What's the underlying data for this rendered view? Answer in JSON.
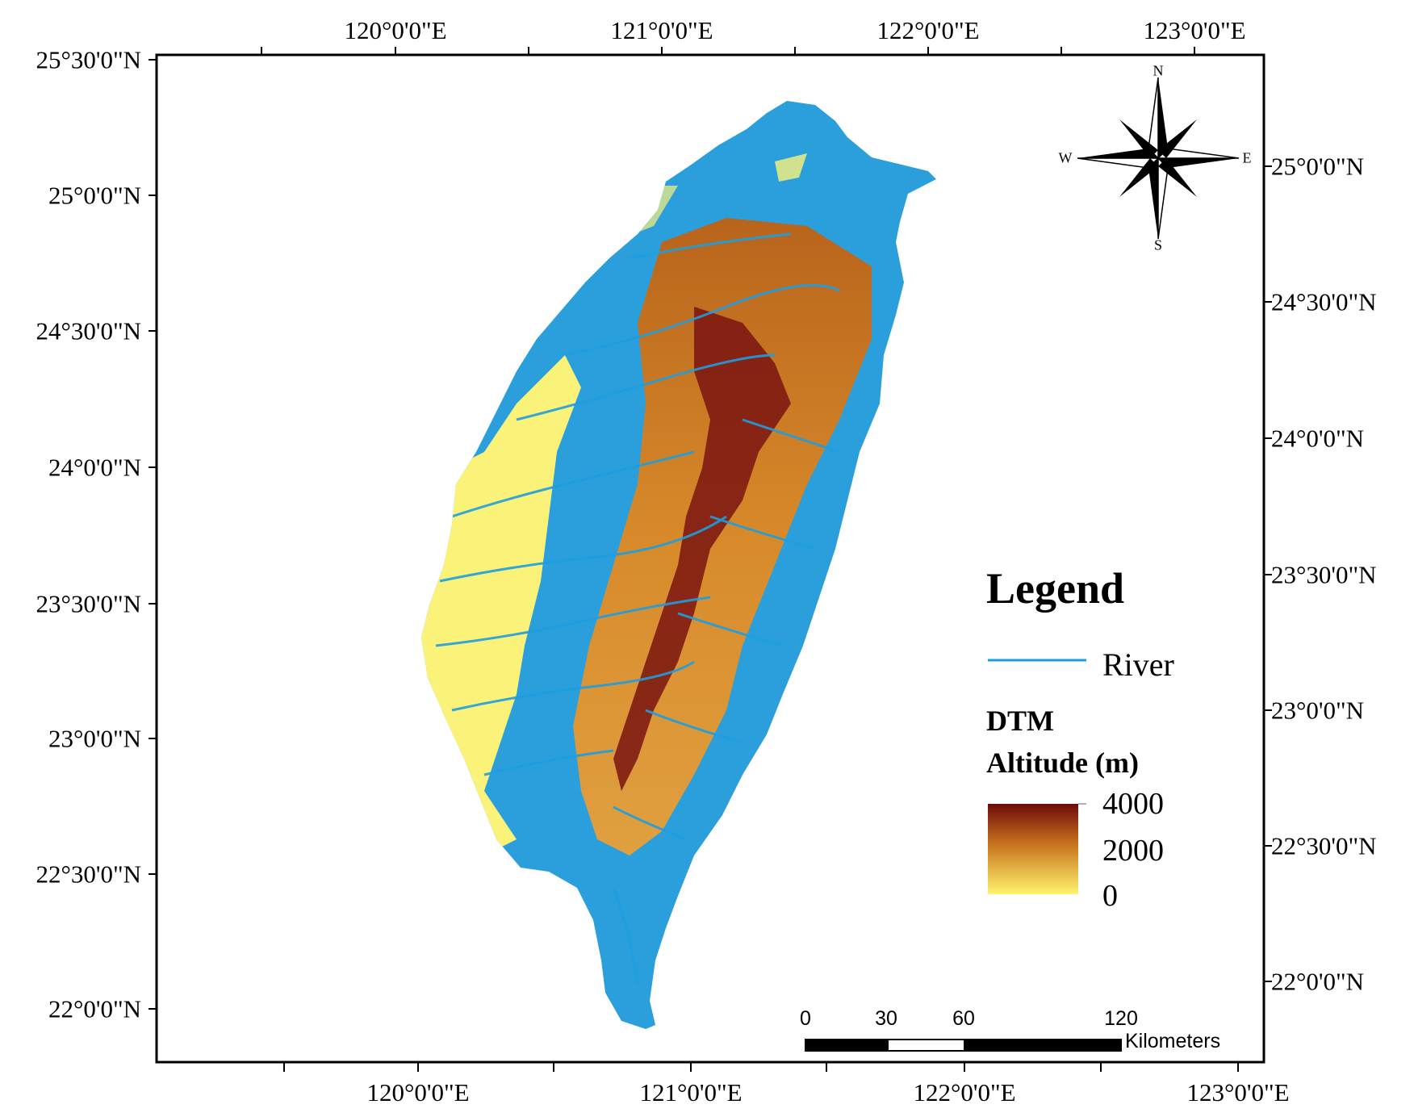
{
  "map": {
    "top_lon_labels": [
      "120°0'0\"E",
      "121°0'0\"E",
      "122°0'0\"E",
      "123°0'0\"E"
    ],
    "bottom_lon_labels": [
      "120°0'0\"E",
      "121°0'0\"E",
      "122°0'0\"E",
      "123°0'0\"E"
    ],
    "left_lat_labels": [
      "25°30'0\"N",
      "25°0'0\"N",
      "24°30'0\"N",
      "24°0'0\"N",
      "23°30'0\"N",
      "23°0'0\"N",
      "22°30'0\"N",
      "22°0'0\"N"
    ],
    "right_lat_labels": [
      "25°0'0\"N",
      "24°30'0\"N",
      "24°0'0\"N",
      "23°30'0\"N",
      "23°0'0\"N",
      "22°30'0\"N",
      "22°0'0\"N"
    ]
  },
  "compass": {
    "n": "N",
    "s": "S",
    "e": "E",
    "w": "W"
  },
  "legend": {
    "title": "Legend",
    "river_label": "River",
    "dtm_label": "DTM",
    "altitude_label": "Altitude (m)",
    "ramp_labels": [
      "4000",
      "2000",
      "0"
    ]
  },
  "scale_bar": {
    "ticks": [
      "0",
      "30",
      "60",
      "120"
    ],
    "unit": "Kilometers"
  },
  "colors": {
    "river": "#1e9ee0",
    "lowland": "#fbf27a",
    "ramp_high": "#6e0a0a",
    "ramp_mid": "#c8741e",
    "ramp_low": "#fff36c"
  }
}
